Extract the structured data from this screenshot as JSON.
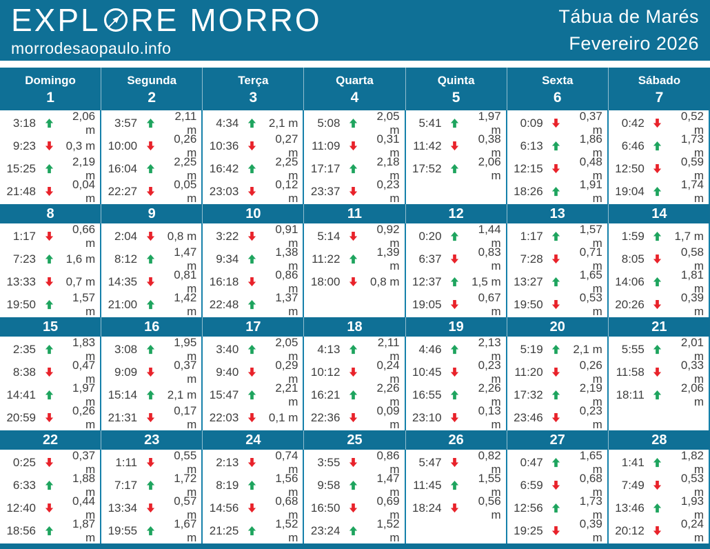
{
  "header": {
    "logo_text_before_compass": "EXPL",
    "logo_text_after_compass": "RE MORRO",
    "site_url": "morrodesaopaulo.info",
    "page_title": "Tábua de Marés",
    "month_year": "Fevereiro 2026"
  },
  "colors": {
    "header_bg": "#0f7096",
    "grid_line": "#1580aa",
    "tide_up": "#1ea45e",
    "tide_down": "#e8222a",
    "text_dark": "#3d3d3d"
  },
  "calendar": {
    "weekday_labels": [
      "Domingo",
      "Segunda",
      "Terça",
      "Quarta",
      "Quinta",
      "Sexta",
      "Sábado"
    ],
    "unit": "m",
    "weeks": [
      {
        "days": [
          {
            "day": "1",
            "tides": [
              {
                "time": "3:18",
                "dir": "up",
                "height": "2,06"
              },
              {
                "time": "9:23",
                "dir": "down",
                "height": "0,3"
              },
              {
                "time": "15:25",
                "dir": "up",
                "height": "2,19"
              },
              {
                "time": "21:48",
                "dir": "down",
                "height": "0,04"
              }
            ]
          },
          {
            "day": "2",
            "tides": [
              {
                "time": "3:57",
                "dir": "up",
                "height": "2,11"
              },
              {
                "time": "10:00",
                "dir": "down",
                "height": "0,26"
              },
              {
                "time": "16:04",
                "dir": "up",
                "height": "2,25"
              },
              {
                "time": "22:27",
                "dir": "down",
                "height": "0,05"
              }
            ]
          },
          {
            "day": "3",
            "tides": [
              {
                "time": "4:34",
                "dir": "up",
                "height": "2,1"
              },
              {
                "time": "10:36",
                "dir": "down",
                "height": "0,27"
              },
              {
                "time": "16:42",
                "dir": "up",
                "height": "2,25"
              },
              {
                "time": "23:03",
                "dir": "down",
                "height": "0,12"
              }
            ]
          },
          {
            "day": "4",
            "tides": [
              {
                "time": "5:08",
                "dir": "up",
                "height": "2,05"
              },
              {
                "time": "11:09",
                "dir": "down",
                "height": "0,31"
              },
              {
                "time": "17:17",
                "dir": "up",
                "height": "2,18"
              },
              {
                "time": "23:37",
                "dir": "down",
                "height": "0,23"
              }
            ]
          },
          {
            "day": "5",
            "tides": [
              {
                "time": "5:41",
                "dir": "up",
                "height": "1,97"
              },
              {
                "time": "11:42",
                "dir": "down",
                "height": "0,38"
              },
              {
                "time": "17:52",
                "dir": "up",
                "height": "2,06"
              }
            ]
          },
          {
            "day": "6",
            "tides": [
              {
                "time": "0:09",
                "dir": "down",
                "height": "0,37"
              },
              {
                "time": "6:13",
                "dir": "up",
                "height": "1,86"
              },
              {
                "time": "12:15",
                "dir": "down",
                "height": "0,48"
              },
              {
                "time": "18:26",
                "dir": "up",
                "height": "1,91"
              }
            ]
          },
          {
            "day": "7",
            "tides": [
              {
                "time": "0:42",
                "dir": "down",
                "height": "0,52"
              },
              {
                "time": "6:46",
                "dir": "up",
                "height": "1,73"
              },
              {
                "time": "12:50",
                "dir": "down",
                "height": "0,59"
              },
              {
                "time": "19:04",
                "dir": "up",
                "height": "1,74"
              }
            ]
          }
        ]
      },
      {
        "days": [
          {
            "day": "8",
            "tides": [
              {
                "time": "1:17",
                "dir": "down",
                "height": "0,66"
              },
              {
                "time": "7:23",
                "dir": "up",
                "height": "1,6"
              },
              {
                "time": "13:33",
                "dir": "down",
                "height": "0,7"
              },
              {
                "time": "19:50",
                "dir": "up",
                "height": "1,57"
              }
            ]
          },
          {
            "day": "9",
            "tides": [
              {
                "time": "2:04",
                "dir": "down",
                "height": "0,8"
              },
              {
                "time": "8:12",
                "dir": "up",
                "height": "1,47"
              },
              {
                "time": "14:35",
                "dir": "down",
                "height": "0,81"
              },
              {
                "time": "21:00",
                "dir": "up",
                "height": "1,42"
              }
            ]
          },
          {
            "day": "10",
            "tides": [
              {
                "time": "3:22",
                "dir": "down",
                "height": "0,91"
              },
              {
                "time": "9:34",
                "dir": "up",
                "height": "1,38"
              },
              {
                "time": "16:18",
                "dir": "down",
                "height": "0,86"
              },
              {
                "time": "22:48",
                "dir": "up",
                "height": "1,37"
              }
            ]
          },
          {
            "day": "11",
            "tides": [
              {
                "time": "5:14",
                "dir": "down",
                "height": "0,92"
              },
              {
                "time": "11:22",
                "dir": "up",
                "height": "1,39"
              },
              {
                "time": "18:00",
                "dir": "down",
                "height": "0,8"
              }
            ]
          },
          {
            "day": "12",
            "tides": [
              {
                "time": "0:20",
                "dir": "up",
                "height": "1,44"
              },
              {
                "time": "6:37",
                "dir": "down",
                "height": "0,83"
              },
              {
                "time": "12:37",
                "dir": "up",
                "height": "1,5"
              },
              {
                "time": "19:05",
                "dir": "down",
                "height": "0,67"
              }
            ]
          },
          {
            "day": "13",
            "tides": [
              {
                "time": "1:17",
                "dir": "up",
                "height": "1,57"
              },
              {
                "time": "7:28",
                "dir": "down",
                "height": "0,71"
              },
              {
                "time": "13:27",
                "dir": "up",
                "height": "1,65"
              },
              {
                "time": "19:50",
                "dir": "down",
                "height": "0,53"
              }
            ]
          },
          {
            "day": "14",
            "tides": [
              {
                "time": "1:59",
                "dir": "up",
                "height": "1,7"
              },
              {
                "time": "8:05",
                "dir": "down",
                "height": "0,58"
              },
              {
                "time": "14:06",
                "dir": "up",
                "height": "1,81"
              },
              {
                "time": "20:26",
                "dir": "down",
                "height": "0,39"
              }
            ]
          }
        ]
      },
      {
        "days": [
          {
            "day": "15",
            "tides": [
              {
                "time": "2:35",
                "dir": "up",
                "height": "1,83"
              },
              {
                "time": "8:38",
                "dir": "down",
                "height": "0,47"
              },
              {
                "time": "14:41",
                "dir": "up",
                "height": "1,97"
              },
              {
                "time": "20:59",
                "dir": "down",
                "height": "0,26"
              }
            ]
          },
          {
            "day": "16",
            "tides": [
              {
                "time": "3:08",
                "dir": "up",
                "height": "1,95"
              },
              {
                "time": "9:09",
                "dir": "down",
                "height": "0,37"
              },
              {
                "time": "15:14",
                "dir": "up",
                "height": "2,1"
              },
              {
                "time": "21:31",
                "dir": "down",
                "height": "0,17"
              }
            ]
          },
          {
            "day": "17",
            "tides": [
              {
                "time": "3:40",
                "dir": "up",
                "height": "2,05"
              },
              {
                "time": "9:40",
                "dir": "down",
                "height": "0,29"
              },
              {
                "time": "15:47",
                "dir": "up",
                "height": "2,21"
              },
              {
                "time": "22:03",
                "dir": "down",
                "height": "0,1"
              }
            ]
          },
          {
            "day": "18",
            "tides": [
              {
                "time": "4:13",
                "dir": "up",
                "height": "2,11"
              },
              {
                "time": "10:12",
                "dir": "down",
                "height": "0,24"
              },
              {
                "time": "16:21",
                "dir": "up",
                "height": "2,26"
              },
              {
                "time": "22:36",
                "dir": "down",
                "height": "0,09"
              }
            ]
          },
          {
            "day": "19",
            "tides": [
              {
                "time": "4:46",
                "dir": "up",
                "height": "2,13"
              },
              {
                "time": "10:45",
                "dir": "down",
                "height": "0,23"
              },
              {
                "time": "16:55",
                "dir": "up",
                "height": "2,26"
              },
              {
                "time": "23:10",
                "dir": "down",
                "height": "0,13"
              }
            ]
          },
          {
            "day": "20",
            "tides": [
              {
                "time": "5:19",
                "dir": "up",
                "height": "2,1"
              },
              {
                "time": "11:20",
                "dir": "down",
                "height": "0,26"
              },
              {
                "time": "17:32",
                "dir": "up",
                "height": "2,19"
              },
              {
                "time": "23:46",
                "dir": "down",
                "height": "0,23"
              }
            ]
          },
          {
            "day": "21",
            "tides": [
              {
                "time": "5:55",
                "dir": "up",
                "height": "2,01"
              },
              {
                "time": "11:58",
                "dir": "down",
                "height": "0,33"
              },
              {
                "time": "18:11",
                "dir": "up",
                "height": "2,06"
              }
            ]
          }
        ]
      },
      {
        "days": [
          {
            "day": "22",
            "tides": [
              {
                "time": "0:25",
                "dir": "down",
                "height": "0,37"
              },
              {
                "time": "6:33",
                "dir": "up",
                "height": "1,88"
              },
              {
                "time": "12:40",
                "dir": "down",
                "height": "0,44"
              },
              {
                "time": "18:56",
                "dir": "up",
                "height": "1,87"
              }
            ]
          },
          {
            "day": "23",
            "tides": [
              {
                "time": "1:11",
                "dir": "down",
                "height": "0,55"
              },
              {
                "time": "7:17",
                "dir": "up",
                "height": "1,72"
              },
              {
                "time": "13:34",
                "dir": "down",
                "height": "0,57"
              },
              {
                "time": "19:55",
                "dir": "up",
                "height": "1,67"
              }
            ]
          },
          {
            "day": "24",
            "tides": [
              {
                "time": "2:13",
                "dir": "down",
                "height": "0,74"
              },
              {
                "time": "8:19",
                "dir": "up",
                "height": "1,56"
              },
              {
                "time": "14:56",
                "dir": "down",
                "height": "0,68"
              },
              {
                "time": "21:25",
                "dir": "up",
                "height": "1,52"
              }
            ]
          },
          {
            "day": "25",
            "tides": [
              {
                "time": "3:55",
                "dir": "down",
                "height": "0,86"
              },
              {
                "time": "9:58",
                "dir": "up",
                "height": "1,47"
              },
              {
                "time": "16:50",
                "dir": "down",
                "height": "0,69"
              },
              {
                "time": "23:24",
                "dir": "up",
                "height": "1,52"
              }
            ]
          },
          {
            "day": "26",
            "tides": [
              {
                "time": "5:47",
                "dir": "down",
                "height": "0,82"
              },
              {
                "time": "11:45",
                "dir": "up",
                "height": "1,55"
              },
              {
                "time": "18:24",
                "dir": "down",
                "height": "0,56"
              }
            ]
          },
          {
            "day": "27",
            "tides": [
              {
                "time": "0:47",
                "dir": "up",
                "height": "1,65"
              },
              {
                "time": "6:59",
                "dir": "down",
                "height": "0,68"
              },
              {
                "time": "12:56",
                "dir": "up",
                "height": "1,73"
              },
              {
                "time": "19:25",
                "dir": "down",
                "height": "0,39"
              }
            ]
          },
          {
            "day": "28",
            "tides": [
              {
                "time": "1:41",
                "dir": "up",
                "height": "1,82"
              },
              {
                "time": "7:49",
                "dir": "down",
                "height": "0,53"
              },
              {
                "time": "13:46",
                "dir": "up",
                "height": "1,93"
              },
              {
                "time": "20:12",
                "dir": "down",
                "height": "0,24"
              }
            ]
          }
        ]
      }
    ]
  }
}
